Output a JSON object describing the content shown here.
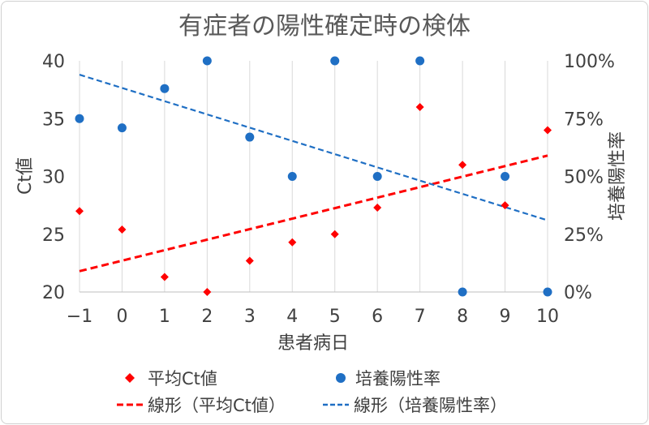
{
  "chart_data": {
    "type": "scatter",
    "title": "有症者の陽性確定時の検体",
    "xlabel": "患者病日",
    "ylabel_left": "Ct値",
    "ylabel_right": "培養陽性率",
    "xlim": [
      -1,
      10
    ],
    "ylim_left": [
      20,
      40
    ],
    "ylim_right": [
      0,
      1
    ],
    "x_ticks": [
      "−1",
      "0",
      "1",
      "2",
      "3",
      "4",
      "5",
      "6",
      "7",
      "8",
      "9",
      "10"
    ],
    "y_left_ticks": [
      "20",
      "25",
      "30",
      "35",
      "40"
    ],
    "y_right_ticks": [
      "0%",
      "25%",
      "50%",
      "75%",
      "100%"
    ],
    "grid": "vertical",
    "legend_position": "bottom",
    "series": [
      {
        "name": "平均Ct値",
        "axis": "left",
        "marker": "diamond",
        "color": "#ff0000",
        "x": [
          -1,
          0,
          1,
          2,
          3,
          4,
          5,
          6,
          7,
          8,
          9,
          10
        ],
        "values": [
          27.0,
          25.4,
          21.3,
          20.0,
          22.7,
          24.3,
          25.0,
          27.3,
          36.0,
          31.0,
          27.5,
          34.0
        ]
      },
      {
        "name": "培養陽性率",
        "axis": "right",
        "marker": "circle",
        "color": "#1f6fc4",
        "x": [
          -1,
          0,
          1,
          2,
          3,
          4,
          5,
          6,
          7,
          8,
          9,
          10
        ],
        "values": [
          0.75,
          0.71,
          0.88,
          1.0,
          0.67,
          0.5,
          1.0,
          0.5,
          1.0,
          0.0,
          0.5,
          0.0
        ]
      }
    ],
    "trendlines": [
      {
        "name": "線形（平均Ct値）",
        "axis": "left",
        "color": "#ff0000",
        "x": [
          -1,
          10
        ],
        "values": [
          21.8,
          31.8
        ]
      },
      {
        "name": "線形（培養陽性率）",
        "axis": "right",
        "color": "#1f6fc4",
        "x": [
          -1,
          10
        ],
        "values": [
          0.94,
          0.31
        ]
      }
    ],
    "legend_labels": {
      "ct": "平均Ct値",
      "rate": "培養陽性率",
      "ct_trend": "線形（平均Ct値）",
      "rate_trend": "線形（培養陽性率）"
    }
  }
}
